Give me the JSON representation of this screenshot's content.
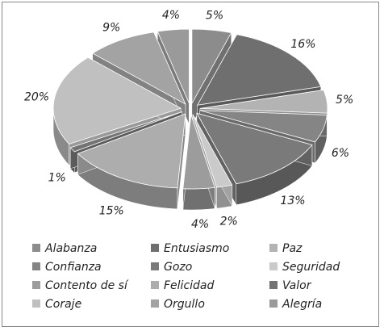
{
  "chart_data": {
    "type": "pie",
    "categories": [
      "Alabanza",
      "Entusiasmo",
      "Paz",
      "Confianza",
      "Gozo",
      "Seguridad",
      "Contento de sí",
      "Felicidad",
      "Valor",
      "Coraje",
      "Orgullo",
      "Alegría"
    ],
    "values": [
      5,
      16,
      5,
      6,
      13,
      2,
      4,
      15,
      1,
      20,
      9,
      4
    ],
    "value_labels": [
      "5%",
      "16%",
      "5%",
      "6%",
      "13%",
      "2%",
      "4%",
      "15%",
      "1%",
      "20%",
      "9%",
      "4%"
    ],
    "colors": [
      "#8c8c8c",
      "#6f6f6f",
      "#b3b3b3",
      "#858585",
      "#7a7a7a",
      "#cacaca",
      "#9c9c9c",
      "#adadad",
      "#737373",
      "#c0c0c0",
      "#a3a3a3",
      "#9a9a9a"
    ],
    "legend": "bottom"
  }
}
